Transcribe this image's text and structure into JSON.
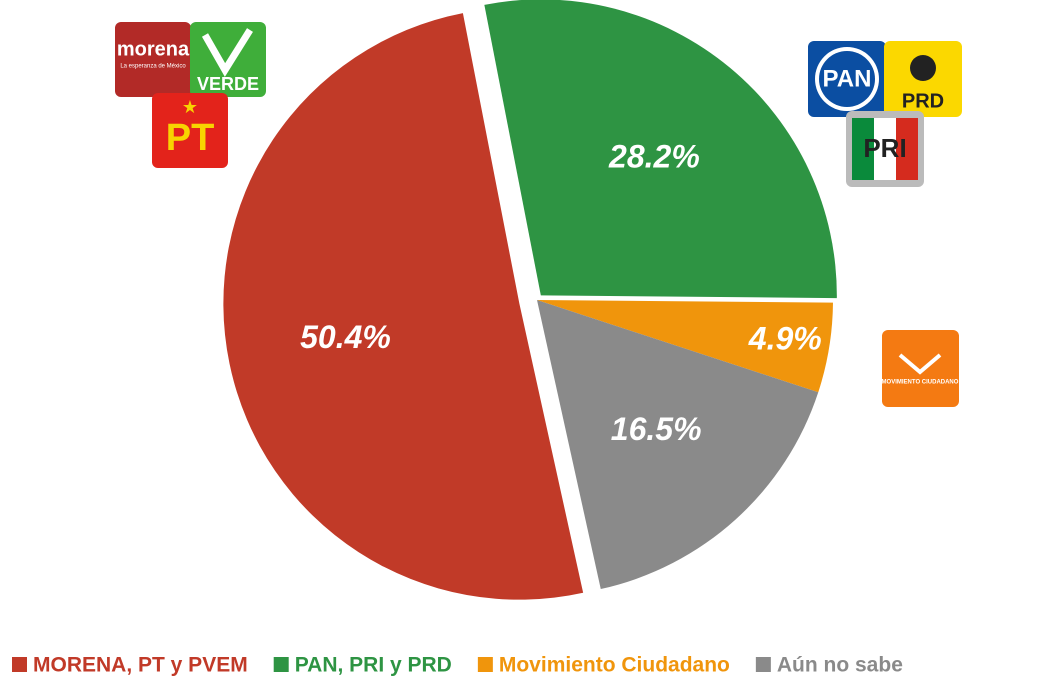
{
  "chart_data": {
    "type": "pie",
    "series": [
      {
        "name": "MORENA, PT y PVEM",
        "color": "#c13a28",
        "values": [
          50.4
        ],
        "value_labels": [
          "50.4%"
        ]
      },
      {
        "name": "PAN, PRI y PRD",
        "color": "#2e9443",
        "values": [
          28.2
        ],
        "value_labels": [
          "28.2%"
        ]
      },
      {
        "name": "Movimiento Ciudadano",
        "color": "#f0950c",
        "values": [
          4.9
        ],
        "value_labels": [
          "4.9%"
        ]
      },
      {
        "name": "Aún no sabe",
        "color": "#8a8a8a",
        "values": [
          16.5
        ],
        "value_labels": [
          "16.5%"
        ]
      }
    ]
  },
  "logos": {
    "morena": "morena",
    "morena_sub": "La esperanza de México",
    "verde": "VERDE",
    "pt": "PT",
    "pan": "PAN",
    "prd": "PRD",
    "pri": "PRI",
    "mc": "MOVIMIENTO CIUDADANO"
  }
}
